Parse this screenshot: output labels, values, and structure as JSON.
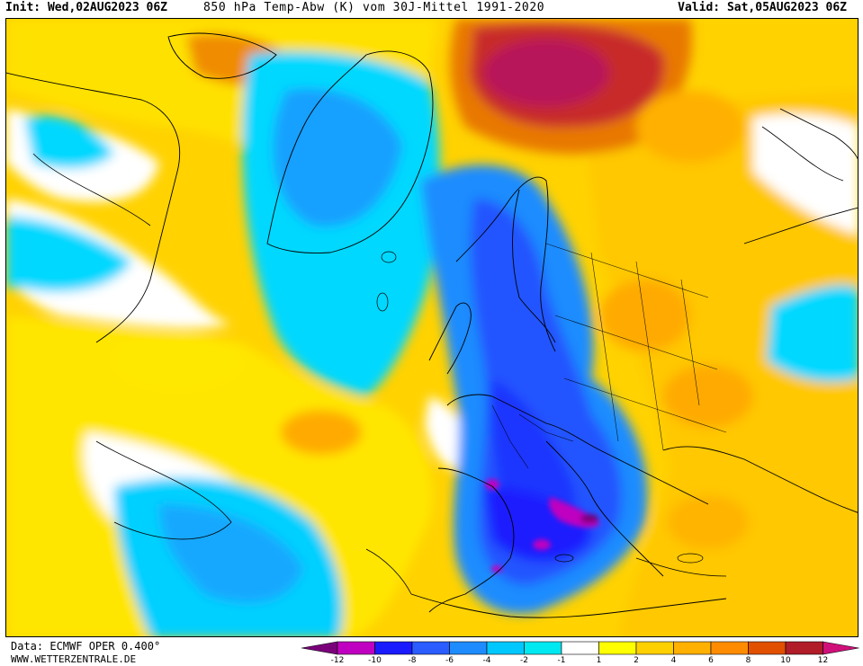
{
  "header": {
    "init": "Init: Wed,02AUG2023 06Z",
    "title": "850 hPa Temp-Abw (K) vom 30J-Mittel 1991-2020",
    "valid": "Valid: Sat,05AUG2023 06Z"
  },
  "footer": {
    "data_source": "Data: ECMWF OPER 0.400°",
    "website": "WWW.WETTERZENTRALE.DE"
  },
  "legend": {
    "ticks": [
      "-12",
      "-10",
      "-8",
      "-6",
      "-4",
      "-2",
      "-1",
      "1",
      "2",
      "4",
      "6",
      "8",
      "10",
      "12"
    ],
    "colors": [
      "#7a007a",
      "#c000c0",
      "#1a1aff",
      "#2a5cff",
      "#1e8cff",
      "#00c8ff",
      "#00e8f0",
      "#ffffff",
      "#ffff00",
      "#ffd000",
      "#ffb000",
      "#ff8c00",
      "#e05000",
      "#b01c28",
      "#d0107a"
    ]
  }
}
